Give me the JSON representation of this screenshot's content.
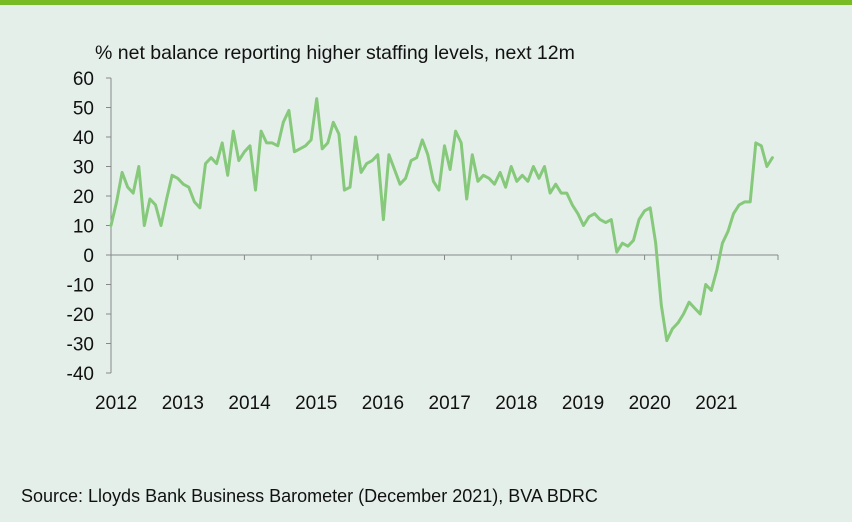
{
  "source": "Source: Lloyds Bank Business Barometer (December 2021), BVA BDRC",
  "colors": {
    "line": "#86c97b",
    "background": "#e5efea",
    "accent_bar": "#78bb22"
  },
  "chart_data": {
    "type": "line",
    "title": "% net balance reporting higher staffing levels, next 12m",
    "xlabel": "",
    "ylabel": "",
    "ylim": [
      -40,
      60
    ],
    "y_ticks": [
      60,
      50,
      40,
      30,
      20,
      10,
      0,
      -10,
      -20,
      -30,
      -40
    ],
    "x_tick_labels": [
      "2012",
      "2013",
      "2014",
      "2015",
      "2016",
      "2017",
      "2018",
      "2019",
      "2020",
      "2021"
    ],
    "grid": false,
    "series": [
      {
        "name": "",
        "x": [
          "2012-01",
          "2012-02",
          "2012-03",
          "2012-04",
          "2012-05",
          "2012-06",
          "2012-07",
          "2012-08",
          "2012-09",
          "2012-10",
          "2012-11",
          "2012-12",
          "2013-01",
          "2013-02",
          "2013-03",
          "2013-04",
          "2013-05",
          "2013-06",
          "2013-07",
          "2013-08",
          "2013-09",
          "2013-10",
          "2013-11",
          "2013-12",
          "2014-01",
          "2014-02",
          "2014-03",
          "2014-04",
          "2014-05",
          "2014-06",
          "2014-07",
          "2014-08",
          "2014-09",
          "2014-10",
          "2014-11",
          "2014-12",
          "2015-01",
          "2015-02",
          "2015-03",
          "2015-04",
          "2015-05",
          "2015-06",
          "2015-07",
          "2015-08",
          "2015-09",
          "2015-10",
          "2015-11",
          "2015-12",
          "2016-01",
          "2016-02",
          "2016-03",
          "2016-04",
          "2016-05",
          "2016-06",
          "2016-07",
          "2016-08",
          "2016-09",
          "2016-10",
          "2016-11",
          "2016-12",
          "2017-01",
          "2017-02",
          "2017-03",
          "2017-04",
          "2017-05",
          "2017-06",
          "2017-07",
          "2017-08",
          "2017-09",
          "2017-10",
          "2017-11",
          "2017-12",
          "2018-01",
          "2018-02",
          "2018-03",
          "2018-04",
          "2018-05",
          "2018-06",
          "2018-07",
          "2018-08",
          "2018-09",
          "2018-10",
          "2018-11",
          "2018-12",
          "2019-01",
          "2019-02",
          "2019-03",
          "2019-04",
          "2019-05",
          "2019-06",
          "2019-07",
          "2019-08",
          "2019-09",
          "2019-10",
          "2019-11",
          "2019-12",
          "2020-01",
          "2020-02",
          "2020-03",
          "2020-04",
          "2020-05",
          "2020-06",
          "2020-07",
          "2020-08",
          "2020-09",
          "2020-10",
          "2020-11",
          "2020-12",
          "2021-01",
          "2021-02",
          "2021-03",
          "2021-04",
          "2021-05",
          "2021-06",
          "2021-07",
          "2021-08",
          "2021-09",
          "2021-10",
          "2021-11",
          "2021-12"
        ],
        "values": [
          10,
          18,
          28,
          23,
          21,
          30,
          10,
          19,
          17,
          10,
          19,
          27,
          26,
          24,
          23,
          18,
          16,
          31,
          33,
          31,
          38,
          27,
          42,
          32,
          35,
          37,
          22,
          42,
          38,
          38,
          37,
          45,
          49,
          35,
          36,
          37,
          39,
          53,
          36,
          38,
          45,
          41,
          22,
          23,
          40,
          28,
          31,
          32,
          34,
          12,
          34,
          29,
          24,
          26,
          32,
          33,
          39,
          34,
          25,
          22,
          37,
          29,
          42,
          38,
          19,
          34,
          25,
          27,
          26,
          24,
          28,
          23,
          30,
          25,
          27,
          25,
          30,
          26,
          30,
          21,
          24,
          21,
          21,
          17,
          14,
          10,
          13,
          14,
          12,
          11,
          12,
          1,
          4,
          3,
          5,
          12,
          15,
          16,
          4,
          -17,
          -29,
          -25,
          -23,
          -20,
          -16,
          -18,
          -20,
          -10,
          -12,
          -5,
          4,
          8,
          14,
          17,
          18,
          18,
          38,
          37,
          30,
          33
        ]
      }
    ]
  }
}
